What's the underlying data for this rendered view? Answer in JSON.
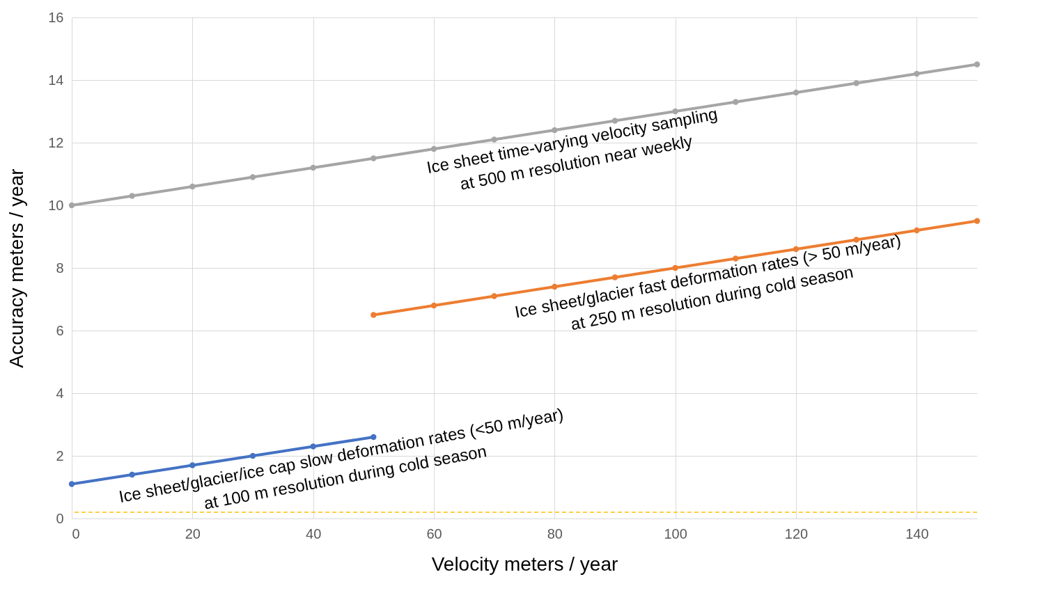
{
  "chart_data": {
    "type": "line",
    "xlabel": "Velocity meters / year",
    "ylabel": "Accuracy meters / year",
    "xlim": [
      0,
      150
    ],
    "xticks": [
      0,
      20,
      40,
      60,
      80,
      100,
      120,
      140
    ],
    "ylim": [
      0,
      16
    ],
    "yticks": [
      0,
      2,
      4,
      6,
      8,
      10,
      12,
      14,
      16
    ],
    "grid": true,
    "marker": "circle",
    "line_style": "solid",
    "series": [
      {
        "name": "Ice sheet time-varying velocity sampling\nat 500 m  resolution near weekly",
        "color": "#a5a5a5",
        "x": [
          0,
          10,
          20,
          30,
          40,
          50,
          60,
          70,
          80,
          90,
          100,
          110,
          120,
          130,
          140,
          150
        ],
        "values": [
          10,
          10.3,
          10.6,
          10.9,
          11.2,
          11.5,
          11.8,
          12.1,
          12.4,
          12.7,
          13,
          13.3,
          13.6,
          13.9,
          14.2,
          14.5
        ]
      },
      {
        "name": "Ice sheet/glacier fast deformation rates (> 50 m/year)\nat 250 m resolution during cold season",
        "color": "#ed7d31",
        "x": [
          50,
          60,
          70,
          80,
          90,
          100,
          110,
          120,
          130,
          140,
          150
        ],
        "values": [
          6.5,
          6.8,
          7.1,
          7.4,
          7.7,
          8,
          8.3,
          8.6,
          8.9,
          9.2,
          9.5
        ]
      },
      {
        "name": "Ice sheet/glacier/ice cap slow deformation rates (<50 m/year)\nat 100 m resolution during cold season",
        "color": "#4472c4",
        "x": [
          0,
          10,
          20,
          30,
          40,
          50
        ],
        "values": [
          1.1,
          1.4,
          1.7,
          2,
          2.3,
          2.6
        ]
      }
    ],
    "ref_lines": [
      {
        "axis": "y",
        "value": 0.2,
        "color": "#ffc000",
        "line_style": "dashed"
      }
    ]
  }
}
